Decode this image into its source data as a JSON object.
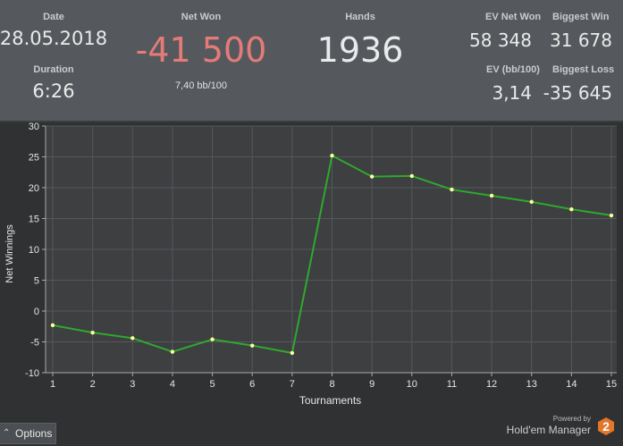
{
  "stats": {
    "date": {
      "label": "Date",
      "value": "28.05.2018"
    },
    "duration": {
      "label": "Duration",
      "value": "6:26"
    },
    "net_won": {
      "label": "Net Won",
      "value": "-41 500",
      "sub": "7,40 bb/100"
    },
    "hands": {
      "label": "Hands",
      "value": "1936"
    },
    "ev_net_won": {
      "label": "EV Net Won",
      "value": "58 348"
    },
    "biggest_win": {
      "label": "Biggest Win",
      "value": "31 678"
    },
    "ev_bb100": {
      "label": "EV (bb/100)",
      "value": "3,14"
    },
    "biggest_loss": {
      "label": "Biggest Loss",
      "value": "-35 645"
    }
  },
  "colors": {
    "net_won_negative": "#e57b78",
    "line": "#2fa82f",
    "point": "#ffff99",
    "plot_bg": "#3d3f41",
    "grid": "#55585b"
  },
  "chart_data": {
    "type": "line",
    "xlabel": "Tournaments",
    "ylabel": "Net Winnings",
    "x": [
      1,
      2,
      3,
      4,
      5,
      6,
      7,
      8,
      9,
      10,
      11,
      12,
      13,
      14,
      15
    ],
    "y": [
      -2.3,
      -3.5,
      -4.4,
      -6.6,
      -4.6,
      -5.6,
      -6.8,
      25.2,
      21.8,
      21.9,
      19.7,
      18.7,
      17.7,
      16.5,
      15.5
    ],
    "xlim": [
      1,
      15
    ],
    "ylim": [
      -10,
      30
    ],
    "y_ticks": [
      -10,
      -5,
      0,
      5,
      10,
      15,
      20,
      25,
      30
    ],
    "x_ticks": [
      1,
      2,
      3,
      4,
      5,
      6,
      7,
      8,
      9,
      10,
      11,
      12,
      13,
      14,
      15
    ],
    "grid": true
  },
  "footer": {
    "options_label": "Options",
    "powered_by": "Powered by",
    "brand": "Hold'em Manager",
    "logo_number": "2"
  }
}
